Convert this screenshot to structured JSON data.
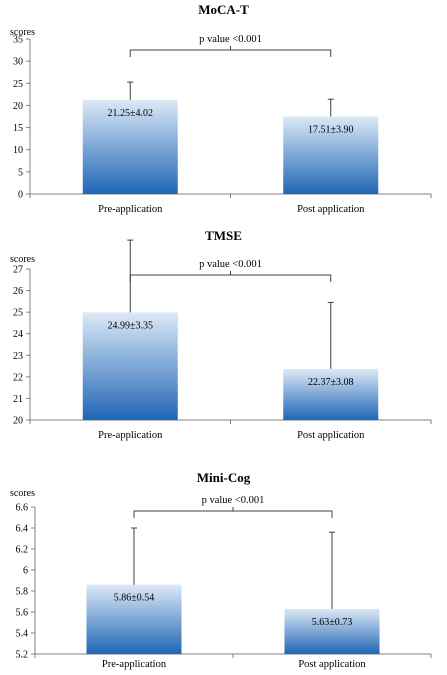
{
  "chart_data": [
    {
      "type": "bar",
      "title": "MoCA-T",
      "ylabel": "scores",
      "categories": [
        "Pre-application",
        "Post application"
      ],
      "values": [
        21.25,
        17.51
      ],
      "errors": [
        4.02,
        3.9
      ],
      "data_labels": [
        "21.25±4.02",
        "17.51±3.90"
      ],
      "significance": "p value <0.001",
      "ylim": [
        0,
        35
      ],
      "yticks": [
        "0",
        "5",
        "10",
        "15",
        "20",
        "25",
        "30",
        "35"
      ],
      "grid": false
    },
    {
      "type": "bar",
      "title": "TMSE",
      "ylabel": "scores",
      "categories": [
        "Pre-application",
        "Post application"
      ],
      "values": [
        24.99,
        22.37
      ],
      "errors": [
        3.35,
        3.08
      ],
      "data_labels": [
        "24.99±3.35",
        "22.37±3.08"
      ],
      "significance": "p value <0.001",
      "ylim": [
        20,
        27
      ],
      "yticks": [
        "20",
        "21",
        "22",
        "23",
        "24",
        "25",
        "26",
        "27"
      ],
      "grid": false
    },
    {
      "type": "bar",
      "title": "Mini-Cog",
      "ylabel": "scores",
      "categories": [
        "Pre-application",
        "Post application"
      ],
      "values": [
        5.86,
        5.63
      ],
      "errors": [
        0.54,
        0.73
      ],
      "data_labels": [
        "5.86±0.54",
        "5.63±0.73"
      ],
      "significance": "p value <0.001",
      "ylim": [
        5.2,
        6.6
      ],
      "yticks": [
        "5.2",
        "5.4",
        "5.6",
        "5.8",
        "6",
        "6.2",
        "6.4",
        "6.6"
      ],
      "grid": false
    }
  ],
  "colors": {
    "bar_top": "#dce9f7",
    "bar_bottom": "#1f66b5",
    "axis": "#808080",
    "errorbar": "#404040",
    "bracket": "#404040"
  }
}
